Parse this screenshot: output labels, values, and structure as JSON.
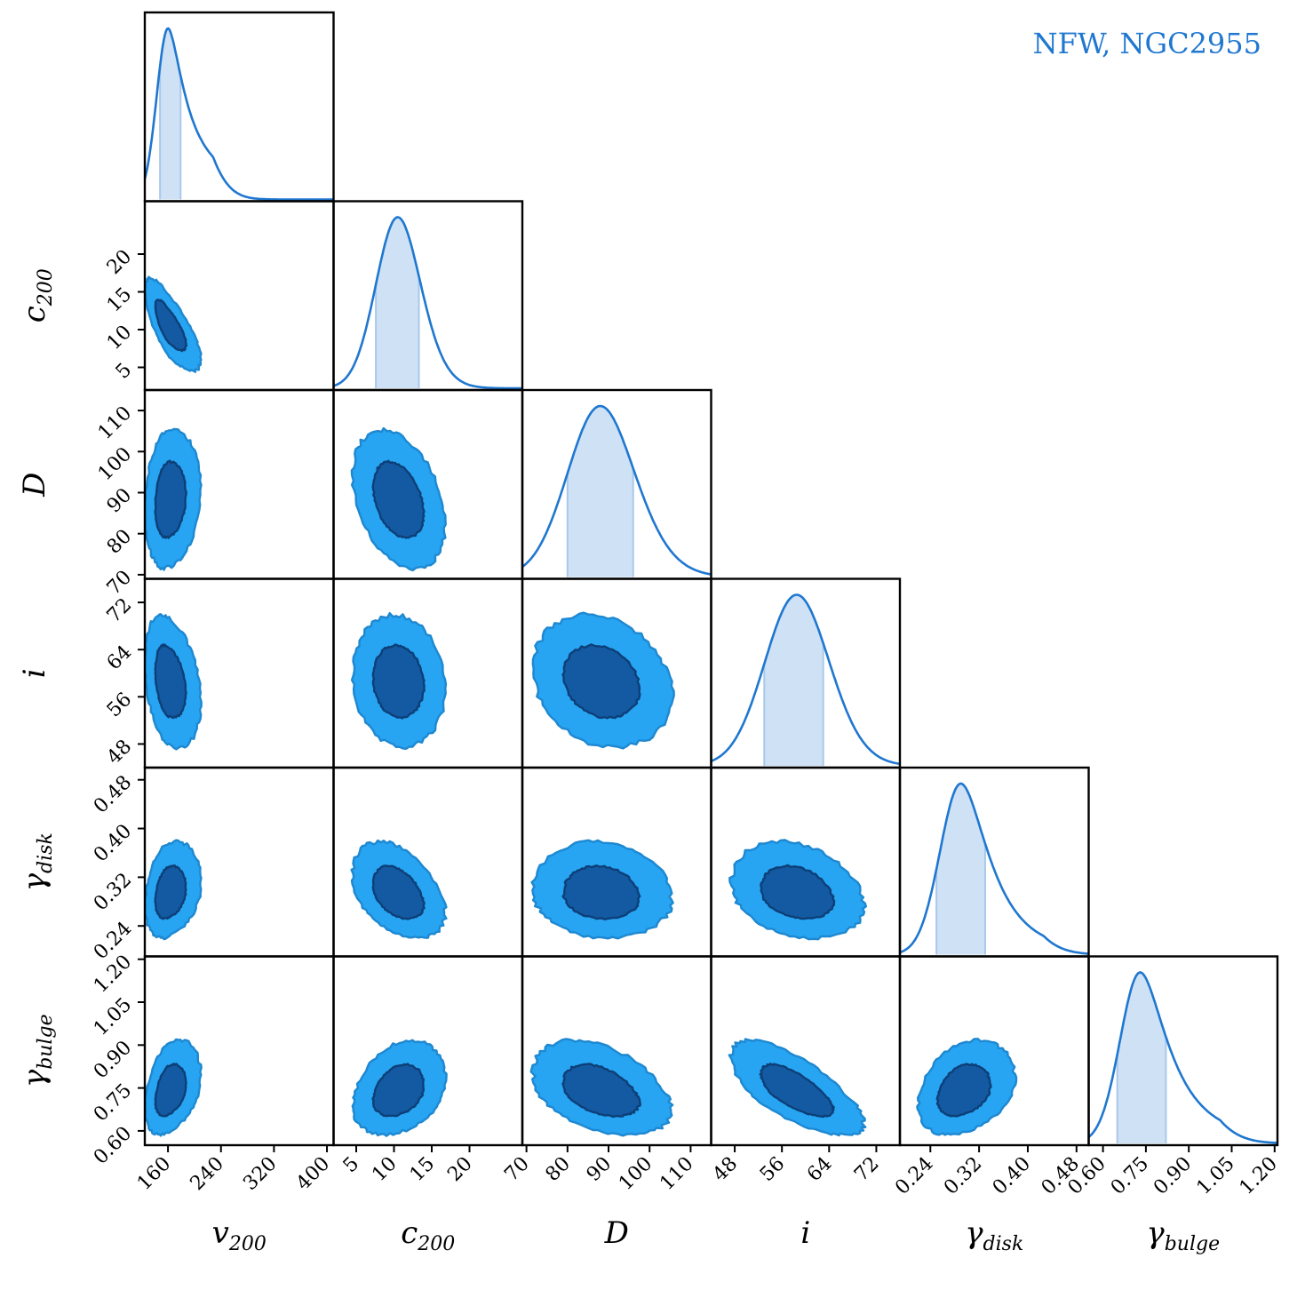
{
  "chart_data": {
    "type": "corner",
    "title": "NFW, NGC2955",
    "colors": {
      "line": "#1f77d0",
      "band": "#cfe2f5",
      "band_edge": "#a9c8ea",
      "contour_outer": "#27a4f2",
      "contour_outer_edge": "#1e88d0",
      "contour_inner": "#145aa2",
      "contour_inner_edge": "#0d3f77",
      "frame": "#000000"
    },
    "parameters": [
      {
        "key": "v200",
        "label": "v",
        "sub": "200",
        "range": [
          125,
          410
        ],
        "ticks": [
          160,
          240,
          320,
          400
        ],
        "tick_labels": [
          "160",
          "240",
          "320",
          "400"
        ],
        "mean": 160,
        "sigma": 17,
        "ci": [
          148,
          179
        ],
        "skew": 1.4
      },
      {
        "key": "c200",
        "label": "c",
        "sub": "200",
        "range": [
          2,
          27
        ],
        "ticks": [
          5,
          10,
          15,
          20
        ],
        "tick_labels": [
          "5",
          "10",
          "15",
          "20"
        ],
        "mean": 10.5,
        "sigma": 2.9,
        "ci": [
          7.6,
          13.3
        ],
        "skew": 0.2
      },
      {
        "key": "D",
        "label": "D",
        "sub": "",
        "range": [
          69,
          115
        ],
        "ticks": [
          70,
          80,
          90,
          100,
          110
        ],
        "tick_labels": [
          "70",
          "80",
          "90",
          "100",
          "110"
        ],
        "mean": 88,
        "sigma": 8.0,
        "ci": [
          80,
          96
        ],
        "skew": 0.2
      },
      {
        "key": "i",
        "label": "i",
        "sub": "",
        "range": [
          44,
          76
        ],
        "ticks": [
          48,
          56,
          64,
          72
        ],
        "tick_labels": [
          "48",
          "56",
          "64",
          "72"
        ],
        "mean": 58.5,
        "sigma": 5.4,
        "ci": [
          53,
          63
        ],
        "skew": 0.1
      },
      {
        "key": "gamma_disk",
        "label": "γ",
        "sub": "disk",
        "range": [
          0.19,
          0.5
        ],
        "ticks": [
          0.24,
          0.32,
          0.4,
          0.48
        ],
        "tick_labels": [
          "0.24",
          "0.32",
          "0.40",
          "0.48"
        ],
        "mean": 0.29,
        "sigma": 0.034,
        "ci": [
          0.25,
          0.33
        ],
        "skew": 0.9
      },
      {
        "key": "gamma_bulge",
        "label": "γ",
        "sub": "bulge",
        "range": [
          0.55,
          1.21
        ],
        "ticks": [
          0.6,
          0.75,
          0.9,
          1.05,
          1.2
        ],
        "tick_labels": [
          "0.60",
          "0.75",
          "0.90",
          "1.05",
          "1.20"
        ],
        "mean": 0.73,
        "sigma": 0.07,
        "ci": [
          0.65,
          0.82
        ],
        "skew": 1.0
      }
    ],
    "correlations": {
      "1-0": -0.75,
      "2-0": 0.15,
      "2-1": -0.35,
      "3-0": -0.3,
      "3-1": -0.1,
      "3-2": -0.2,
      "4-0": 0.25,
      "4-1": -0.4,
      "4-2": -0.1,
      "4-3": -0.25,
      "5-0": 0.35,
      "5-1": 0.3,
      "5-2": -0.4,
      "5-3": -0.7,
      "5-4": 0.3
    }
  }
}
